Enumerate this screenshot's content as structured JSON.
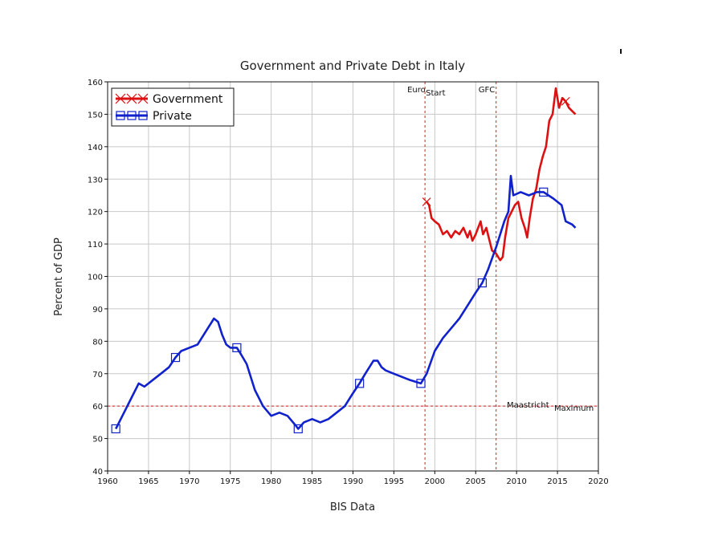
{
  "chart_data": {
    "type": "line",
    "title": "Government and Private Debt in Italy",
    "xlabel": "BIS Data",
    "ylabel": "Percent of GDP",
    "xlim": [
      1960,
      2020
    ],
    "ylim": [
      40,
      160
    ],
    "xticks": [
      1960,
      1965,
      1970,
      1975,
      1980,
      1985,
      1990,
      1995,
      2000,
      2005,
      2010,
      2015,
      2020
    ],
    "yticks": [
      40,
      50,
      60,
      70,
      80,
      90,
      100,
      110,
      120,
      130,
      140,
      150,
      160
    ],
    "grid": true,
    "legend_position": "top-left",
    "series": [
      {
        "name": "Government",
        "color": "#dd1111",
        "marker": "x",
        "marker_x": [
          1999.0,
          2016.0
        ],
        "points": [
          [
            1999.0,
            123
          ],
          [
            1999.3,
            122
          ],
          [
            1999.6,
            118
          ],
          [
            2000.0,
            117
          ],
          [
            2000.5,
            116
          ],
          [
            2001.0,
            113
          ],
          [
            2001.5,
            114
          ],
          [
            2002.0,
            112
          ],
          [
            2002.5,
            114
          ],
          [
            2003.0,
            113
          ],
          [
            2003.5,
            115
          ],
          [
            2004.0,
            112
          ],
          [
            2004.3,
            114
          ],
          [
            2004.6,
            111
          ],
          [
            2005.0,
            113
          ],
          [
            2005.3,
            115
          ],
          [
            2005.6,
            117
          ],
          [
            2005.9,
            113
          ],
          [
            2006.3,
            115
          ],
          [
            2006.6,
            112
          ],
          [
            2007.0,
            108
          ],
          [
            2007.5,
            107
          ],
          [
            2008.0,
            105
          ],
          [
            2008.3,
            106
          ],
          [
            2008.6,
            112
          ],
          [
            2009.0,
            118
          ],
          [
            2009.4,
            120
          ],
          [
            2009.8,
            122
          ],
          [
            2010.2,
            123
          ],
          [
            2010.6,
            118
          ],
          [
            2011.0,
            115
          ],
          [
            2011.3,
            112
          ],
          [
            2011.6,
            118
          ],
          [
            2012.0,
            124
          ],
          [
            2012.4,
            127
          ],
          [
            2012.8,
            133
          ],
          [
            2013.2,
            137
          ],
          [
            2013.6,
            140
          ],
          [
            2014.0,
            148
          ],
          [
            2014.4,
            150
          ],
          [
            2014.8,
            158
          ],
          [
            2015.2,
            152
          ],
          [
            2015.6,
            155
          ],
          [
            2016.0,
            154
          ],
          [
            2016.4,
            152
          ],
          [
            2016.8,
            151
          ],
          [
            2017.2,
            150
          ]
        ]
      },
      {
        "name": "Private",
        "color": "#1122cc",
        "marker": "square",
        "marker_x": [
          1961.0,
          1968.3,
          1975.8,
          1983.3,
          1990.8,
          1998.3,
          2005.8,
          2013.3
        ],
        "points": [
          [
            1961.0,
            53
          ],
          [
            1962.0,
            58
          ],
          [
            1963.0,
            63
          ],
          [
            1963.8,
            67
          ],
          [
            1964.5,
            66
          ],
          [
            1965.5,
            68
          ],
          [
            1966.5,
            70
          ],
          [
            1967.5,
            72
          ],
          [
            1968.3,
            75
          ],
          [
            1969.0,
            77
          ],
          [
            1970.0,
            78
          ],
          [
            1971.0,
            79
          ],
          [
            1972.0,
            83
          ],
          [
            1973.0,
            87
          ],
          [
            1973.5,
            86
          ],
          [
            1974.0,
            82
          ],
          [
            1974.5,
            79
          ],
          [
            1975.0,
            78
          ],
          [
            1975.8,
            78
          ],
          [
            1976.3,
            76
          ],
          [
            1977.0,
            73
          ],
          [
            1978.0,
            65
          ],
          [
            1979.0,
            60
          ],
          [
            1980.0,
            57
          ],
          [
            1981.0,
            58
          ],
          [
            1982.0,
            57
          ],
          [
            1983.0,
            54
          ],
          [
            1983.3,
            53
          ],
          [
            1984.0,
            55
          ],
          [
            1985.0,
            56
          ],
          [
            1986.0,
            55
          ],
          [
            1987.0,
            56
          ],
          [
            1988.0,
            58
          ],
          [
            1989.0,
            60
          ],
          [
            1990.0,
            64
          ],
          [
            1990.8,
            67
          ],
          [
            1991.5,
            70
          ],
          [
            1992.5,
            74
          ],
          [
            1993.0,
            74
          ],
          [
            1993.5,
            72
          ],
          [
            1994.0,
            71
          ],
          [
            1995.0,
            70
          ],
          [
            1996.0,
            69
          ],
          [
            1997.0,
            68
          ],
          [
            1998.3,
            67
          ],
          [
            1999.0,
            70
          ],
          [
            2000.0,
            77
          ],
          [
            2001.0,
            81
          ],
          [
            2002.0,
            84
          ],
          [
            2003.0,
            87
          ],
          [
            2004.0,
            91
          ],
          [
            2005.0,
            95
          ],
          [
            2005.8,
            98
          ],
          [
            2006.5,
            102
          ],
          [
            2007.5,
            109
          ],
          [
            2008.5,
            117
          ],
          [
            2009.0,
            120
          ],
          [
            2009.3,
            131
          ],
          [
            2009.6,
            125
          ],
          [
            2010.5,
            126
          ],
          [
            2011.5,
            125
          ],
          [
            2012.5,
            126
          ],
          [
            2013.3,
            126
          ],
          [
            2014.5,
            124
          ],
          [
            2015.5,
            122
          ],
          [
            2016.0,
            117
          ],
          [
            2016.8,
            116
          ],
          [
            2017.2,
            115
          ]
        ]
      }
    ],
    "reference_lines": [
      {
        "axis": "x",
        "value": 1998.8,
        "label": "Euro Start"
      },
      {
        "axis": "x",
        "value": 2007.5,
        "label": "GFC"
      },
      {
        "axis": "y",
        "value": 60,
        "label": "Maastricht Maximum"
      }
    ]
  }
}
